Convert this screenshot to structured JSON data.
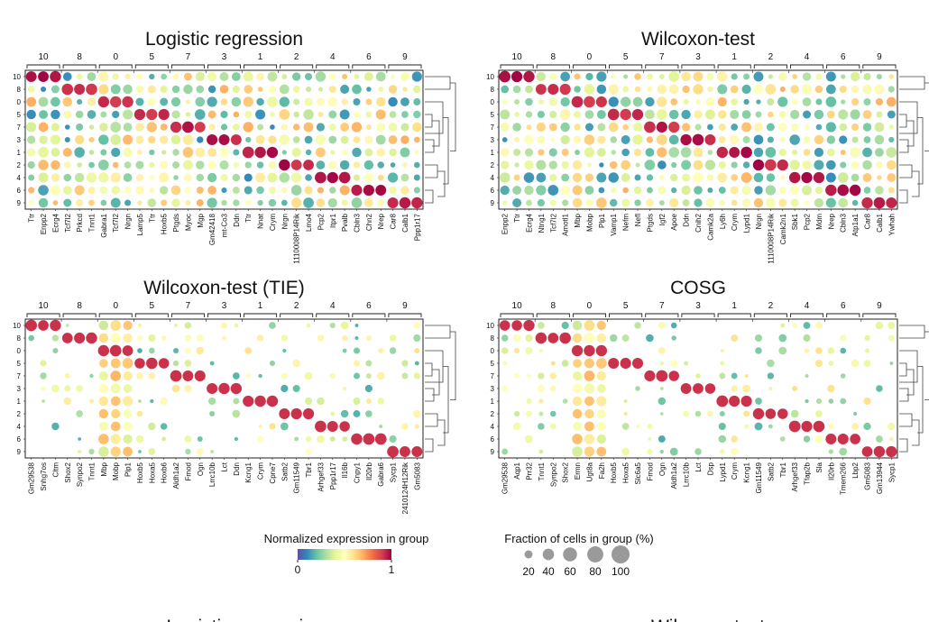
{
  "chart_data": [
    {
      "type": "dotplot",
      "title": "Logistic regression",
      "groups": [
        "10",
        "8",
        "0",
        "5",
        "7",
        "3",
        "1",
        "2",
        "4",
        "6",
        "9"
      ],
      "group_genes": [
        3,
        3,
        3,
        3,
        3,
        3,
        3,
        3,
        3,
        3,
        3
      ],
      "rows": [
        "10",
        "8",
        "0",
        "5",
        "7",
        "3",
        "1",
        "2",
        "4",
        "6",
        "9"
      ],
      "genes": [
        "Ttr",
        "Enpp2",
        "Ecrg4",
        "Tcf7l2",
        "Prkcd",
        "Tnnt1",
        "Gabra1",
        "Tcf7l2",
        "Nrgn",
        "Lamp5",
        "Ttr",
        "Hoxb5",
        "Ptgds",
        "Myoc",
        "Mgp",
        "Gm42418",
        "mt-Co3",
        "Ddn",
        "Ttr",
        "Nnat",
        "Crym",
        "Nrgn",
        "1110008P14Rik",
        "Lmo4",
        "Pcp2",
        "Itpr1",
        "Pvalb",
        "Cbln3",
        "Chn2",
        "Nrep",
        "Car8",
        "Calb1",
        "Ppp1r17"
      ]
    },
    {
      "type": "dotplot",
      "title": "Wilcoxon-test",
      "groups": [
        "10",
        "8",
        "0",
        "5",
        "7",
        "3",
        "1",
        "2",
        "4",
        "6",
        "9"
      ],
      "group_genes": [
        3,
        3,
        3,
        3,
        3,
        3,
        3,
        3,
        3,
        3,
        3
      ],
      "rows": [
        "10",
        "8",
        "0",
        "5",
        "7",
        "3",
        "1",
        "2",
        "4",
        "6",
        "9"
      ],
      "genes": [
        "Enpp2",
        "Ttr",
        "Ecrg4",
        "Ntng1",
        "Tcf7l2",
        "Amotl1",
        "Mbp",
        "Mobp",
        "Plp1",
        "Vamp1",
        "Nefm",
        "Nefl",
        "Ptgds",
        "Igf2",
        "Apoe",
        "Ddn",
        "Cnih2",
        "Camk2a",
        "Ly6h",
        "Crym",
        "Lypd1",
        "Nrgn",
        "1110008P14Rik",
        "Camk2n1",
        "Sbk1",
        "Pcp2",
        "Mdm",
        "Nrep",
        "Cbln3",
        "Atp1a1",
        "Car8",
        "Calb1",
        "Ywhah"
      ]
    },
    {
      "type": "dotplot",
      "title": "Wilcoxon-test (TIE)",
      "groups": [
        "10",
        "8",
        "0",
        "5",
        "7",
        "3",
        "1",
        "2",
        "4",
        "6",
        "9"
      ],
      "group_genes": [
        3,
        3,
        3,
        3,
        3,
        3,
        3,
        3,
        3,
        3,
        3
      ],
      "rows": [
        "10",
        "8",
        "0",
        "5",
        "7",
        "3",
        "1",
        "2",
        "4",
        "6",
        "9"
      ],
      "genes": [
        "Gm29538",
        "Snhg7os",
        "Cltm",
        "Shox2",
        "Synpo2",
        "Tnnt1",
        "Mbp",
        "Mobp",
        "Plp1",
        "Hoxb5",
        "Hoxa5",
        "Hoxb6",
        "Aldh1a2",
        "Fmod",
        "Ogn",
        "Lrrc10b",
        "Lct",
        "Ddn",
        "Kcng1",
        "Crym",
        "Cpne7",
        "Satb2",
        "Gm11549",
        "Tbr1",
        "Arhgef33",
        "Ppp1r17",
        "Il16b",
        "Cnpy1",
        "Il20rb",
        "Gabra6",
        "Sycp1",
        "2410124H12Rik",
        "Gm5083"
      ]
    },
    {
      "type": "dotplot",
      "title": "COSG",
      "groups": [
        "10",
        "8",
        "0",
        "5",
        "7",
        "3",
        "1",
        "2",
        "4",
        "6",
        "9"
      ],
      "group_genes": [
        3,
        3,
        3,
        3,
        3,
        3,
        3,
        3,
        3,
        3,
        3
      ],
      "rows": [
        "10",
        "8",
        "0",
        "5",
        "7",
        "3",
        "1",
        "2",
        "4",
        "6",
        "9"
      ],
      "genes": [
        "Gm29538",
        "Aqp1",
        "Prr32",
        "Tnnt1",
        "Synpo2",
        "Shox2",
        "Ermn",
        "Ugt8a",
        "Fa2h",
        "Hoxb5",
        "Hoxa5",
        "Slc6a5",
        "Fmod",
        "Ogn",
        "Aldh1a2",
        "Lrrc10b",
        "Lct",
        "Dsp",
        "Lypd1",
        "Crym",
        "Kcng1",
        "Gm11549",
        "Satb2",
        "Tbr1",
        "Arhgef33",
        "Tfap2b",
        "Sla",
        "Il20rb",
        "Tmem266",
        "Lbp2",
        "Gm5083",
        "Gm13944",
        "Sycp1"
      ]
    }
  ],
  "colorbar": {
    "label": "Normalized expression in group",
    "min_label": "0",
    "max_label": "1",
    "stops": [
      "#5e4fa2",
      "#3288bd",
      "#66c2a5",
      "#abdda4",
      "#e6f598",
      "#ffffbf",
      "#fee08b",
      "#fdae61",
      "#f46d43",
      "#d53e4f",
      "#9e0142"
    ]
  },
  "size_legend": {
    "label": "Fraction of cells in group (%)",
    "values": [
      20,
      40,
      60,
      80,
      100
    ],
    "value_labels": [
      "20",
      "40",
      "60",
      "80",
      "100"
    ],
    "color": "#9a9a9a"
  },
  "partial_titles": [
    "Logistic regression",
    "Wilcoxon-test"
  ]
}
